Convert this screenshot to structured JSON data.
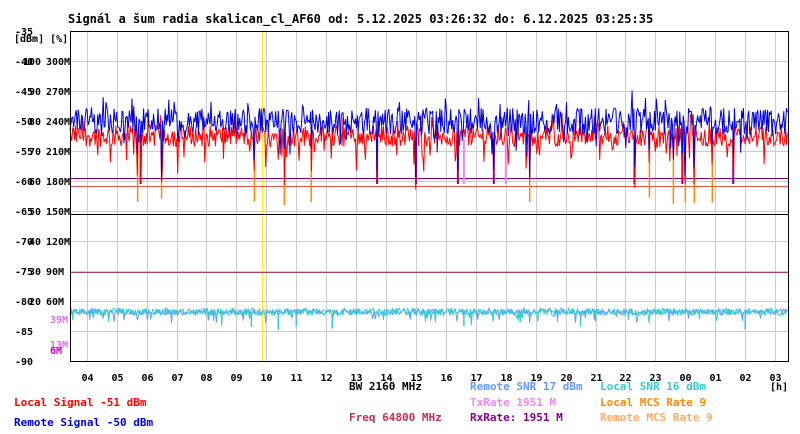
{
  "chart_data": {
    "type": "line",
    "title": "Signál a šum radia skalican_cl_AF60 od: 5.12.2025 03:26:32 do: 6.12.2025 03:25:35",
    "unit_label": "[dBm] [%]",
    "dbm_ticks": [
      "-35",
      "-40",
      "-45",
      "-50",
      "-55",
      "-60",
      "-65",
      "-70",
      "-75",
      "-80",
      "-85",
      "-90"
    ],
    "dbm_range": [
      -90,
      -35
    ],
    "percent_ticks": [
      "100",
      "90",
      "80",
      "70",
      "60",
      "50",
      "40",
      "30",
      "20"
    ],
    "rate_ticks": [
      "300M",
      "270M",
      "240M",
      "210M",
      "180M",
      "150M",
      "120M",
      "90M",
      "60M"
    ],
    "rate_marks": [
      {
        "label": "39M",
        "color": "#e070e0",
        "dbm": -83
      },
      {
        "label": "13M",
        "color": "#e070e0",
        "dbm": -87.2
      },
      {
        "label": "6M",
        "color": "#cc00cc",
        "dbm": -88.2
      }
    ],
    "x_ticks": [
      "04",
      "05",
      "06",
      "07",
      "08",
      "09",
      "10",
      "11",
      "12",
      "13",
      "14",
      "15",
      "16",
      "17",
      "18",
      "19",
      "20",
      "21",
      "22",
      "23",
      "00",
      "01",
      "02",
      "03"
    ],
    "x_unit": "[h]",
    "x_range_hours": [
      3.44,
      27.43
    ],
    "cursor_hour": 9.87,
    "reference_lines": [
      {
        "dbm": -60.9,
        "color": "#e05050"
      },
      {
        "dbm": -59.5,
        "color": "#800080"
      },
      {
        "dbm": -65.5,
        "color": "#000000"
      },
      {
        "dbm": -75.1,
        "color": "#b04060"
      }
    ],
    "series": [
      {
        "name": "Local Signal",
        "color": "#ff0000",
        "level_dbm": -52.5,
        "spread_dbm": 1.8
      },
      {
        "name": "Remote Signal",
        "color": "#0000dd",
        "level_dbm": -50.0,
        "spread_dbm": 2.2
      },
      {
        "name": "Remote SNR",
        "color": "#6699ff",
        "level_dbm": -81.8,
        "spread_dbm": 0.5
      },
      {
        "name": "Local SNR",
        "color": "#33cccc",
        "level_dbm": -81.8,
        "spread_dbm": 0.6
      }
    ],
    "dropouts": {
      "orange_hours": [
        5.7,
        6.5,
        9.6,
        10.6,
        11.5,
        18.8,
        22.8,
        23.6,
        24.0,
        24.3,
        24.9
      ],
      "purple_hours": [
        5.8,
        13.7,
        15.0,
        16.4,
        17.6,
        22.3,
        23.9,
        25.6
      ],
      "violet_hours": [
        16.6,
        18.0
      ],
      "cyan_hours": [
        9.5,
        10.4,
        11.0,
        12.2,
        16.6,
        20.5,
        26.0
      ]
    }
  },
  "legend": {
    "bw": "BW 2160 MHz",
    "freq": "Freq 64800 MHz",
    "local_signal": "Local Signal -51 dBm",
    "remote_signal": "Remote Signal -50 dBm",
    "remote_snr": "Remote SNR 17 dBm",
    "local_snr": "Local SNR 16 dBm",
    "txrate": "TxRate 1951 M",
    "rxrate": "RxRate: 1951 M",
    "local_mcs": "Local MCS Rate 9",
    "remote_mcs": "Remote MCS Rate 9"
  },
  "colors": {
    "grid": "#cccccc",
    "local_signal": "#ff0000",
    "remote_signal": "#0000dd",
    "remote_snr": "#6699ff",
    "local_snr": "#33cccc",
    "txrate": "#ee88ee",
    "rxrate": "#880088",
    "local_mcs": "#ff8800",
    "remote_mcs": "#ffaa66",
    "freq": "#bb3355",
    "cursor": "#ffee00"
  }
}
